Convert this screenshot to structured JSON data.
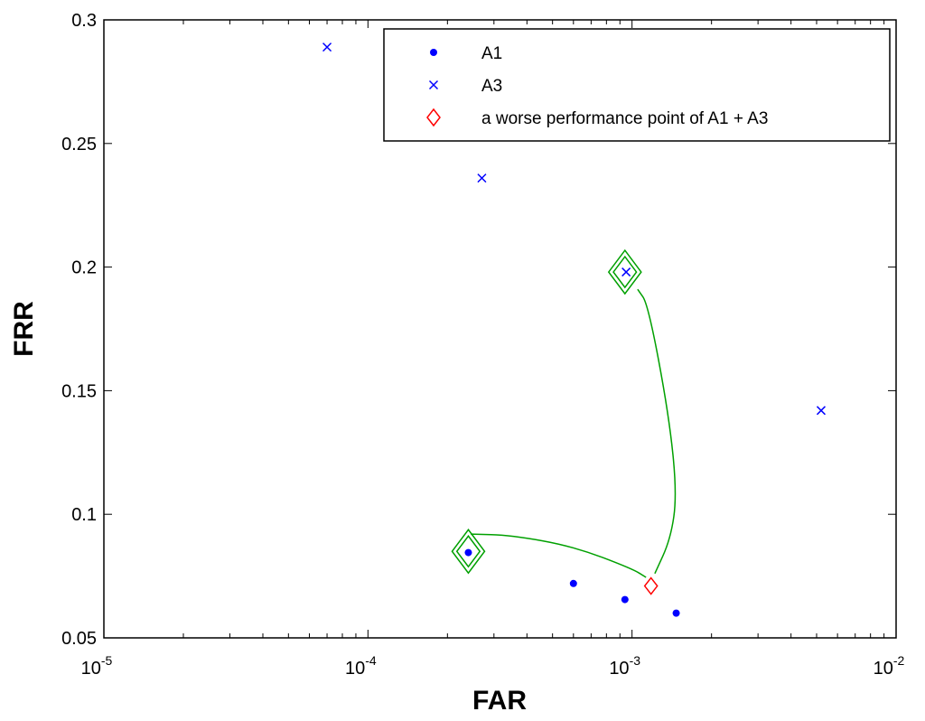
{
  "chart_data": {
    "type": "scatter",
    "xscale": "log",
    "xlim": [
      1e-05,
      0.01
    ],
    "ylim": [
      0.05,
      0.3
    ],
    "xlabel": "FAR",
    "ylabel": "FRR",
    "x_ticks": [
      {
        "value": 1e-05,
        "base": "10",
        "exp": "-5"
      },
      {
        "value": 0.0001,
        "base": "10",
        "exp": "-4"
      },
      {
        "value": 0.001,
        "base": "10",
        "exp": "-3"
      },
      {
        "value": 0.01,
        "base": "10",
        "exp": "-2"
      }
    ],
    "y_ticks": [
      {
        "value": 0.05,
        "label": "0.05"
      },
      {
        "value": 0.1,
        "label": "0.1"
      },
      {
        "value": 0.15,
        "label": "0.15"
      },
      {
        "value": 0.2,
        "label": "0.2"
      },
      {
        "value": 0.25,
        "label": "0.25"
      },
      {
        "value": 0.3,
        "label": "0.3"
      }
    ],
    "grid": false,
    "legend_position": "top-right",
    "series": [
      {
        "name": "A1",
        "marker": "dot",
        "color": "#0000ff",
        "points": [
          {
            "x": 0.00024,
            "y": 0.0845
          },
          {
            "x": 0.0006,
            "y": 0.072
          },
          {
            "x": 0.00094,
            "y": 0.0655
          },
          {
            "x": 0.00147,
            "y": 0.06
          }
        ]
      },
      {
        "name": "A3",
        "marker": "x",
        "color": "#0000ff",
        "points": [
          {
            "x": 7e-05,
            "y": 0.289
          },
          {
            "x": 0.00027,
            "y": 0.236
          },
          {
            "x": 0.00095,
            "y": 0.198
          },
          {
            "x": 0.0052,
            "y": 0.142
          }
        ]
      },
      {
        "name": "a worse performance point of A1 + A3",
        "marker": "diamond",
        "color": "#ff0000",
        "points": [
          {
            "x": 0.00118,
            "y": 0.071
          }
        ]
      }
    ],
    "annotations": {
      "color": "#00a000",
      "highlighted_points": [
        {
          "x": 0.00024,
          "y": 0.085
        },
        {
          "x": 0.00094,
          "y": 0.198
        }
      ],
      "curves": [
        {
          "points": [
            {
              "x": 0.000245,
              "y": 0.092
            },
            {
              "x": 0.00035,
              "y": 0.0915
            },
            {
              "x": 0.0006,
              "y": 0.087
            },
            {
              "x": 0.001,
              "y": 0.078
            },
            {
              "x": 0.00113,
              "y": 0.0745
            }
          ]
        },
        {
          "points": [
            {
              "x": 0.00122,
              "y": 0.076
            },
            {
              "x": 0.0014,
              "y": 0.09
            },
            {
              "x": 0.00148,
              "y": 0.108
            },
            {
              "x": 0.00138,
              "y": 0.14
            },
            {
              "x": 0.00115,
              "y": 0.185
            },
            {
              "x": 0.00105,
              "y": 0.191
            }
          ]
        }
      ]
    }
  }
}
